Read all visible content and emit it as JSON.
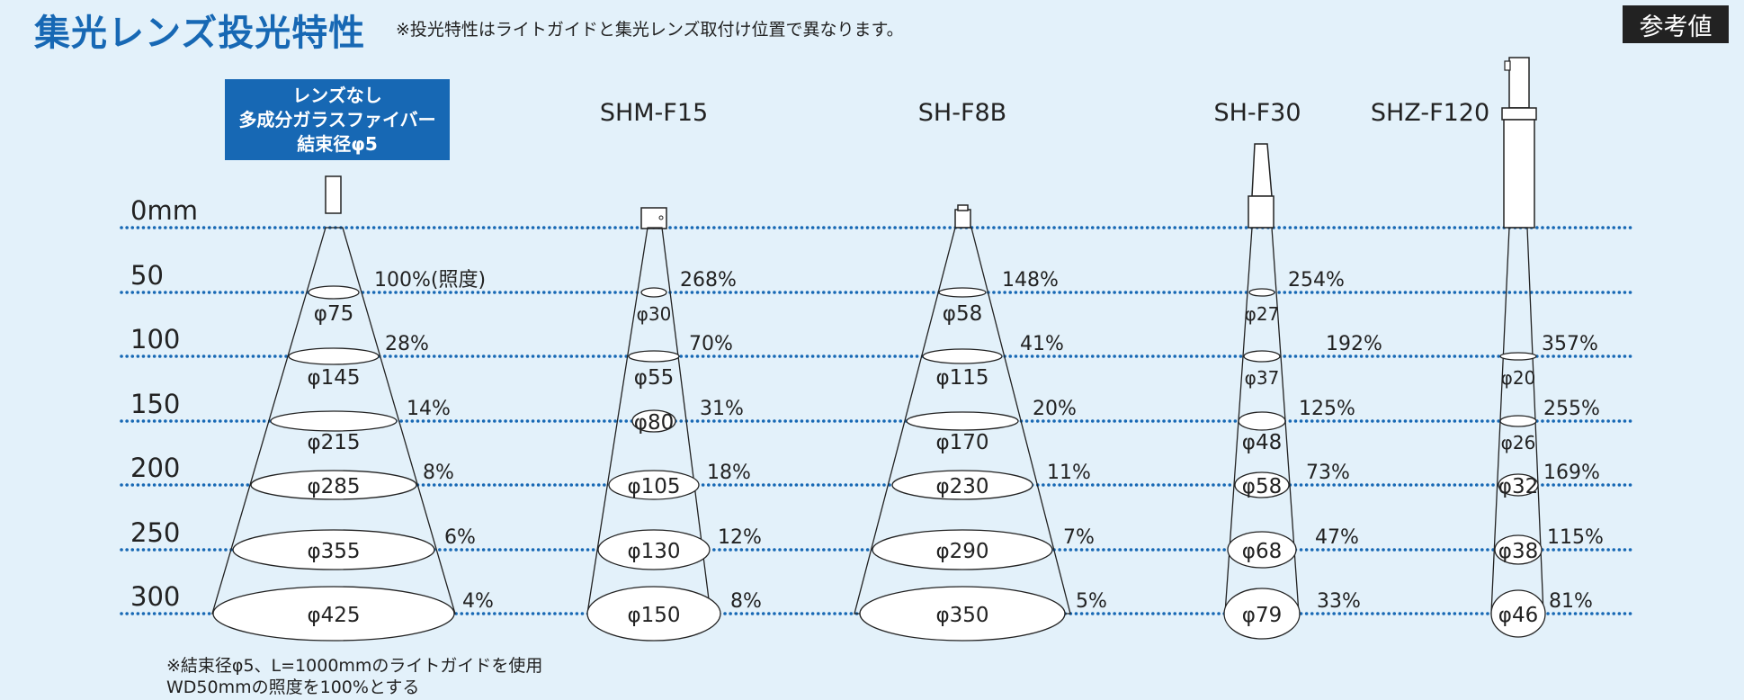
{
  "header": {
    "title": "集光レンズ投光特性",
    "note": "※投光特性はライトガイドと集光レンズ取付け位置で異なります。",
    "badge": "参考値"
  },
  "distance_labels": [
    "0mm",
    "50",
    "100",
    "150",
    "200",
    "250",
    "300"
  ],
  "lenses": [
    {
      "name": "レンズなし多成分ガラスファイバー結束径φ5",
      "name_lines": [
        "レンズなし",
        "多成分ガラスファイバー",
        "結束径φ5"
      ],
      "spots": [
        "φ75",
        "φ145",
        "φ215",
        "φ285",
        "φ355",
        "φ425"
      ],
      "illuminance": [
        "100%(照度)",
        "28%",
        "14%",
        "8%",
        "6%",
        "4%"
      ]
    },
    {
      "name": "SHM-F15",
      "spots": [
        "φ30",
        "φ55",
        "φ80",
        "φ105",
        "φ130",
        "φ150"
      ],
      "illuminance": [
        "268%",
        "70%",
        "31%",
        "18%",
        "12%",
        "8%"
      ]
    },
    {
      "name": "SH-F8B",
      "spots": [
        "φ58",
        "φ115",
        "φ170",
        "φ230",
        "φ290",
        "φ350"
      ],
      "illuminance": [
        "148%",
        "41%",
        "20%",
        "11%",
        "7%",
        "5%"
      ]
    },
    {
      "name": "SH-F30",
      "spots": [
        "φ27",
        "φ37",
        "φ48",
        "φ58",
        "φ68",
        "φ79"
      ],
      "illuminance": [
        "254%",
        "192%",
        "125%",
        "73%",
        "47%",
        "33%"
      ]
    },
    {
      "name": "SHZ-F120",
      "spots": [
        "φ20",
        "φ26",
        "φ32",
        "φ38",
        "φ46"
      ],
      "illuminance": [
        "357%",
        "255%",
        "169%",
        "115%",
        "81%"
      ]
    }
  ],
  "footnote": [
    "※結束径φ5、L=1000mmのライトガイドを使用",
    "WD50mmの照度を100%とする"
  ],
  "colors": {
    "accent": "#1768b4",
    "dotted": "#1768b4",
    "background": "#e3f1fa"
  }
}
